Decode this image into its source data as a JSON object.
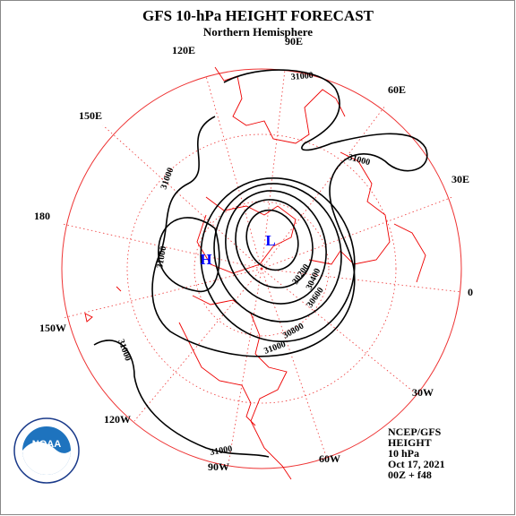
{
  "header": {
    "title": "GFS 10-hPa HEIGHT FORECAST",
    "subtitle": "Northern Hemisphere"
  },
  "longitudes": [
    "90E",
    "60E",
    "30E",
    "0",
    "30W",
    "60W",
    "90W",
    "120W",
    "150W",
    "180",
    "150E",
    "120E"
  ],
  "contour_labels": [
    "31000",
    "31000",
    "31000",
    "31000",
    "31000",
    "31000",
    "30800",
    "30600",
    "30400",
    "30200",
    "31000"
  ],
  "centers": [
    "H",
    "L"
  ],
  "info": [
    "NCEP/GFS",
    "HEIGHT",
    "10 hPa",
    "Oct 17, 2021",
    "00Z + f48"
  ],
  "logo": "NOAA"
}
